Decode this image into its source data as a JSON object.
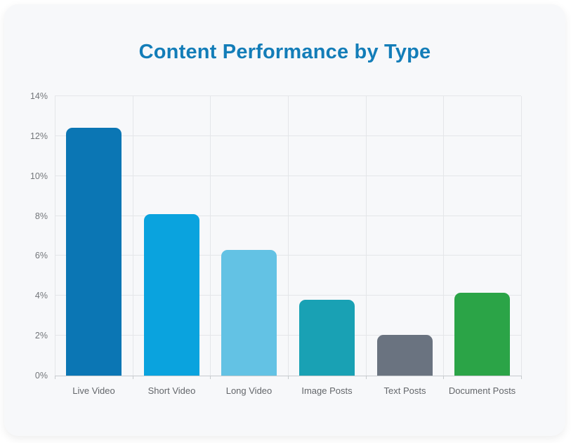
{
  "page": {
    "card_bg": "#f7f8fa",
    "page_bg": "#ffffff",
    "title_color": "#137db8"
  },
  "chart_data": {
    "type": "bar",
    "title": "Content Performance by Type",
    "categories": [
      "Live Video",
      "Short Video",
      "Long Video",
      "Image Posts",
      "Text Posts",
      "Document Posts"
    ],
    "values": [
      12.4,
      8.1,
      6.3,
      3.8,
      2.05,
      4.15
    ],
    "bar_colors": [
      "#0b76b4",
      "#0aa3de",
      "#63c2e4",
      "#19a1b4",
      "#6a7380",
      "#2ba447"
    ],
    "xlabel": "",
    "ylabel": "",
    "ylim": [
      0,
      14
    ],
    "ytick_step": 2,
    "ytick_labels": [
      "0%",
      "2%",
      "4%",
      "6%",
      "8%",
      "10%",
      "12%",
      "14%"
    ],
    "value_suffix": "%",
    "grid": true,
    "legend": "none"
  },
  "colors": {
    "gridline": "#e4e6e9",
    "axis_line": "#c7cbce",
    "y_label": "#73767a",
    "x_label": "#63666a"
  }
}
